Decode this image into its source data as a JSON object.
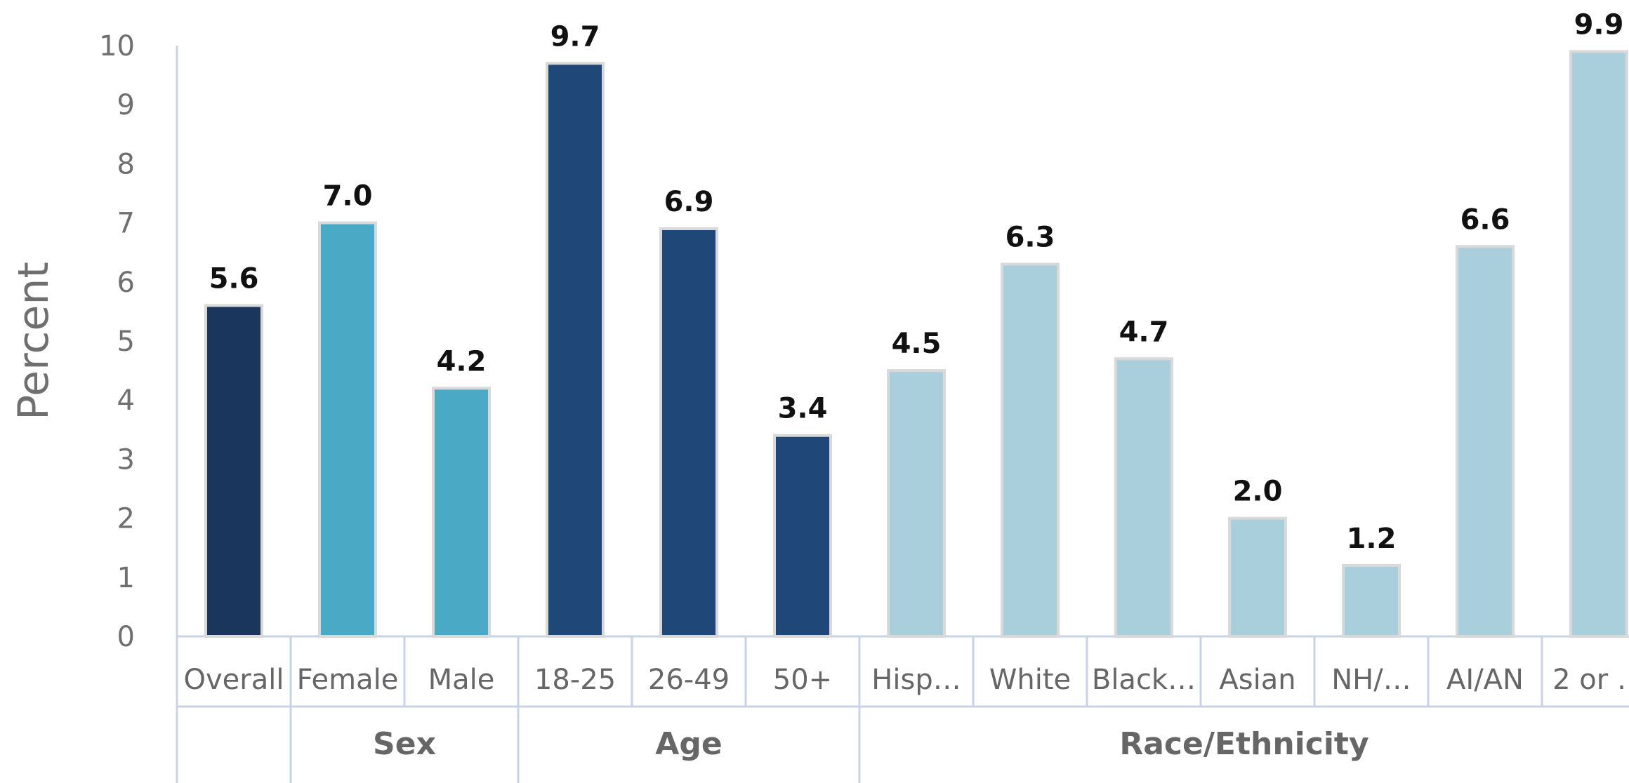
{
  "chart_data": {
    "type": "bar",
    "ylabel": "Percent",
    "xlabel": "",
    "ylim": [
      0,
      10
    ],
    "yticks": [
      "0",
      "1",
      "2",
      "3",
      "4",
      "5",
      "6",
      "7",
      "8",
      "9",
      "10"
    ],
    "grid": false,
    "categories": [
      "Overall",
      "Female",
      "Male",
      "18-25",
      "26-49",
      "50+",
      "Hisp…",
      "White",
      "Black…",
      "Asian",
      "NH/…",
      "AI/AN",
      "2 or …"
    ],
    "values": [
      5.6,
      7.0,
      4.2,
      9.7,
      6.9,
      3.4,
      4.5,
      6.3,
      4.7,
      2.0,
      1.2,
      6.6,
      9.9
    ],
    "data_labels": [
      "5.6",
      "7.0",
      "4.2",
      "9.7",
      "6.9",
      "3.4",
      "4.5",
      "6.3",
      "4.7",
      "2.0",
      "1.2",
      "6.6",
      "9.9"
    ],
    "groups": [
      {
        "label": "",
        "count": 1
      },
      {
        "label": "Sex",
        "count": 2
      },
      {
        "label": "Age",
        "count": 3
      },
      {
        "label": "Race/Ethnicity",
        "count": 7
      }
    ],
    "colors": {
      "overall": "#1a365d",
      "sex": "#4aa9c4",
      "age": "#1f4778",
      "race": "#a9cfdd",
      "bar_border": "#d9d9d9",
      "axis": "#c9d3e8"
    },
    "bar_colors": [
      "#1a365d",
      "#4aa9c4",
      "#4aa9c4",
      "#1f4778",
      "#1f4778",
      "#1f4778",
      "#a9cfdd",
      "#a9cfdd",
      "#a9cfdd",
      "#a9cfdd",
      "#a9cfdd",
      "#a9cfdd",
      "#a9cfdd"
    ]
  }
}
